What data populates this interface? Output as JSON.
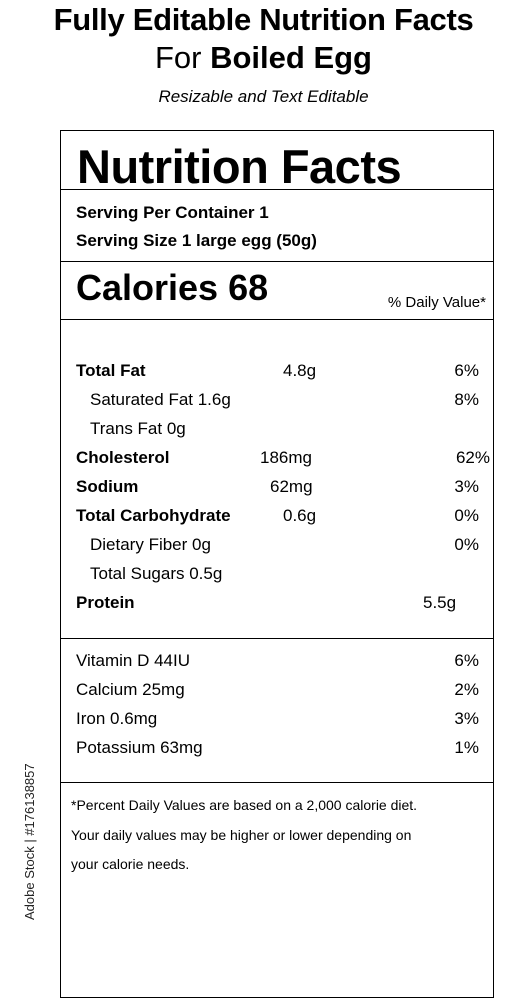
{
  "header": {
    "title_line1": "Fully Editable Nutrition Facts",
    "title_prefix": "For ",
    "title_food": "Boiled Egg",
    "subtitle": "Resizable and Text Editable"
  },
  "label": {
    "title": "Nutrition Facts",
    "servings_per_container": "Serving Per Container 1",
    "serving_size": "Serving Size 1 large egg (50g)",
    "calories": "Calories 68",
    "daily_value_header": "% Daily Value*",
    "nutrients": [
      {
        "name": "Total Fat",
        "amount": "4.8g",
        "dv": "6%"
      },
      {
        "name": "Saturated Fat 1.6g",
        "amount": "",
        "dv": "8%"
      },
      {
        "name": "Trans Fat 0g",
        "amount": "",
        "dv": ""
      },
      {
        "name": "Cholesterol",
        "amount": "186mg",
        "dv": "62%"
      },
      {
        "name": "Sodium",
        "amount": "62mg",
        "dv": "3%"
      },
      {
        "name": "Total Carbohydrate",
        "amount": "0.6g",
        "dv": "0%"
      },
      {
        "name": "Dietary Fiber 0g",
        "amount": "",
        "dv": "0%"
      },
      {
        "name": "Total Sugars 0.5g",
        "amount": "",
        "dv": ""
      },
      {
        "name": "Protein",
        "amount": "5.5g",
        "dv": ""
      }
    ],
    "vitamins": [
      {
        "name": "Vitamin D 44IU",
        "dv": "6%"
      },
      {
        "name": "Calcium 25mg",
        "dv": "2%"
      },
      {
        "name": "Iron 0.6mg",
        "dv": "3%"
      },
      {
        "name": "Potassium 63mg",
        "dv": "1%"
      }
    ],
    "footnote": [
      "*Percent Daily Values are based on a 2,000 calorie diet.",
      "Your daily values may be higher or lower depending on",
      "your calorie needs."
    ]
  },
  "watermark": "Adobe Stock | #176138857"
}
